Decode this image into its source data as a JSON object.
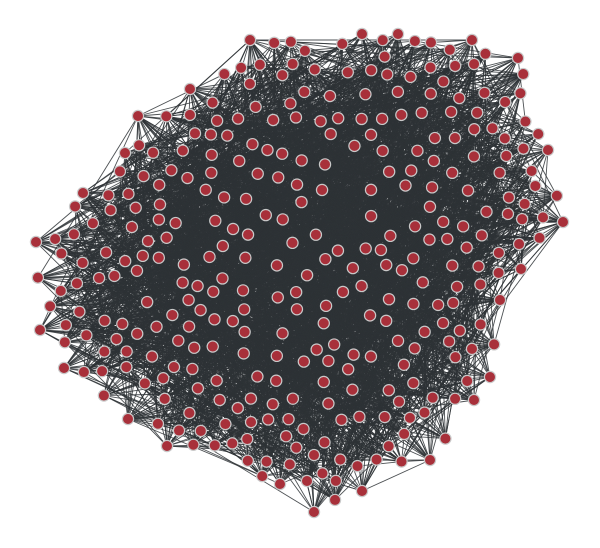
{
  "graph": {
    "node_count": 330,
    "density": "dense",
    "colors": {
      "background": "#ffffff",
      "edge": "#2e3236",
      "node_fill": "#a8303a",
      "node_stroke": "#c9c9c9"
    }
  }
}
